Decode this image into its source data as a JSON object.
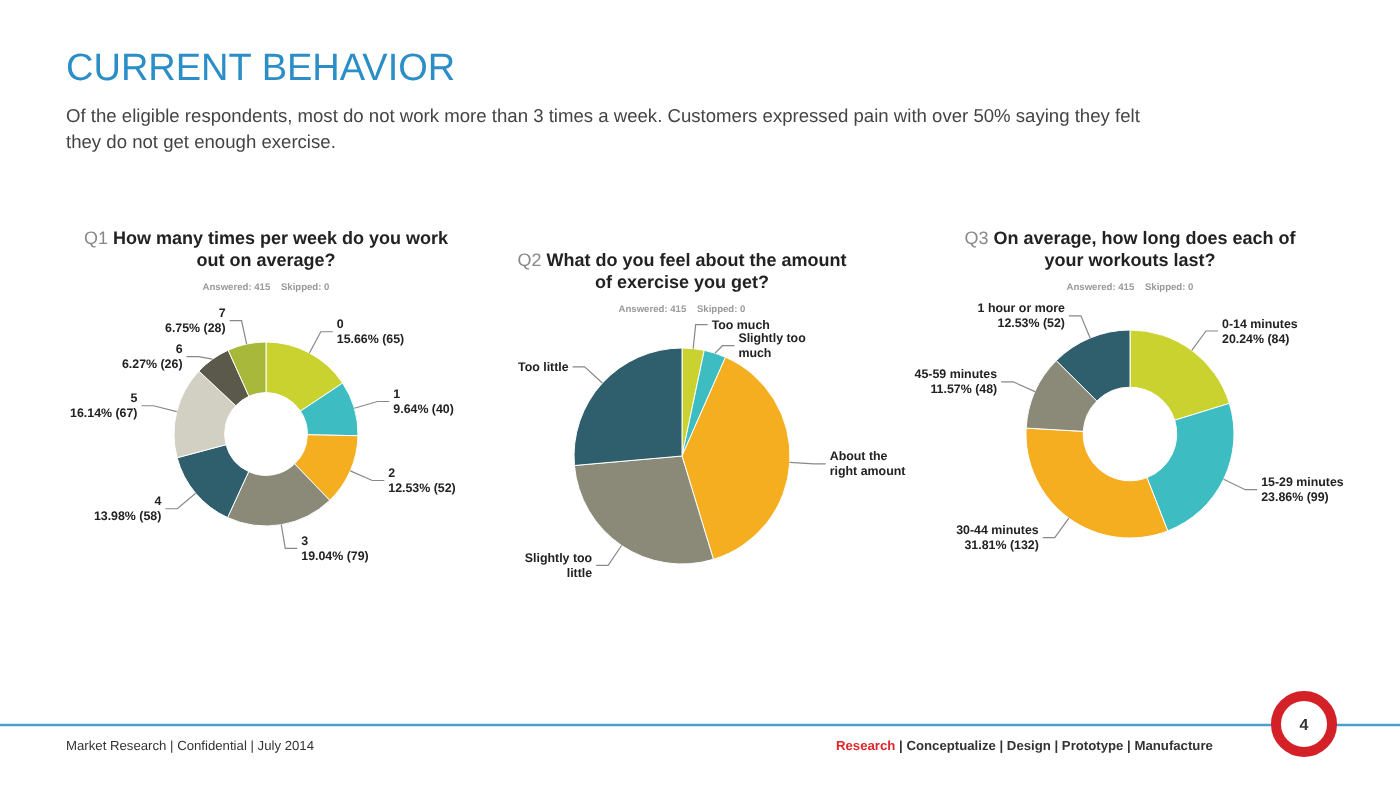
{
  "chart_data": [
    {
      "type": "other",
      "title": "CURRENT BEHAVIOR",
      "subtitle": "Of the eligible respondents, most do not work more than 3 times a week. Customers expressed pain with over 50% saying they felt they do not get enough exercise.",
      "annotations": [
        "Market Research | Confidential | July 2014",
        "Research | Conceptualize | Design | Prototype | Manufacture",
        "4"
      ]
    },
    {
      "type": "donut",
      "title": "Q1 How many times per week do you work out on average?",
      "subtitle": "Answered: 415    Skipped: 0",
      "categories": [
        "0",
        "1",
        "2",
        "3",
        "4",
        "5",
        "6",
        "7"
      ],
      "values": [
        15.66,
        9.64,
        12.53,
        19.04,
        13.98,
        16.14,
        6.27,
        6.75
      ],
      "value_labels": [
        "15.66% (65)",
        "9.64% (40)",
        "12.53% (52)",
        "19.04% (79)",
        "13.98% (58)",
        "16.14% (67)",
        "6.27% (26)",
        "6.75% (28)"
      ],
      "colors": [
        "#c9d22f",
        "#3dbdc1",
        "#f4ae1f",
        "#8b8a78",
        "#2f5f6c",
        "#d2d0c3",
        "#5b5949",
        "#a8b83a"
      ]
    },
    {
      "type": "pie",
      "title": "Q2 What do you feel about the amount of exercise you get?",
      "subtitle": "Answered: 415    Skipped: 0",
      "categories": [
        "Too much",
        "Slightly too much",
        "About the right amount",
        "Slightly too little",
        "Too little"
      ],
      "values": [
        3.3,
        3.3,
        38.7,
        28.3,
        26.4
      ],
      "colors": [
        "#c9d22f",
        "#3dbdc1",
        "#f4ae1f",
        "#8b8a78",
        "#2f5f6c"
      ]
    },
    {
      "type": "donut",
      "title": "Q3 On average, how long does each of your workouts last?",
      "subtitle": "Answered: 415    Skipped: 0",
      "categories": [
        "0-14 minutes",
        "15-29 minutes",
        "30-44 minutes",
        "45-59 minutes",
        "1 hour or more"
      ],
      "values": [
        20.24,
        23.86,
        31.81,
        11.57,
        12.53
      ],
      "value_labels": [
        "20.24% (84)",
        "23.86% (99)",
        "31.81% (132)",
        "11.57% (48)",
        "12.53% (52)"
      ],
      "colors": [
        "#c9d22f",
        "#3dbdc1",
        "#f4ae1f",
        "#8b8a78",
        "#2f5f6c"
      ]
    }
  ]
}
